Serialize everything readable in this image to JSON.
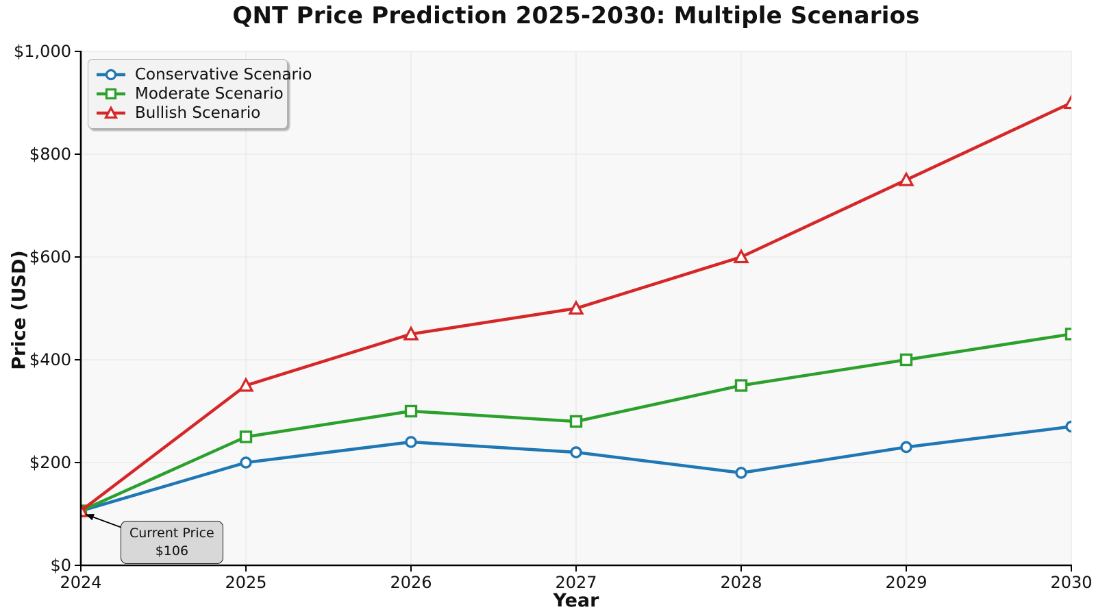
{
  "chart": {
    "title": "QNT Price Prediction 2025-2030: Multiple Scenarios",
    "xlabel": "Year",
    "ylabel": "Price (USD)"
  },
  "chart_data": {
    "type": "line",
    "title": "QNT Price Prediction 2025-2030: Multiple Scenarios",
    "xlabel": "Year",
    "ylabel": "Price (USD)",
    "x": [
      2024,
      2025,
      2026,
      2027,
      2028,
      2029,
      2030
    ],
    "x_tick_labels": [
      "2024",
      "2025",
      "2026",
      "2027",
      "2028",
      "2029",
      "2030"
    ],
    "ylim": [
      0,
      1000
    ],
    "y_ticks": [
      0,
      200,
      400,
      600,
      800,
      1000
    ],
    "y_tick_labels": [
      "$0",
      "$200",
      "$400",
      "$600",
      "$800",
      "$1,000"
    ],
    "grid": true,
    "legend_position": "upper-left",
    "series": [
      {
        "name": "Conservative Scenario",
        "color": "#1f77b4",
        "marker": "circle",
        "values": [
          106,
          200,
          240,
          220,
          180,
          230,
          270
        ]
      },
      {
        "name": "Moderate Scenario",
        "color": "#2ca02c",
        "marker": "square",
        "values": [
          106,
          250,
          300,
          280,
          350,
          400,
          450
        ]
      },
      {
        "name": "Bullish Scenario",
        "color": "#d62728",
        "marker": "triangle",
        "values": [
          106,
          350,
          450,
          500,
          600,
          750,
          900
        ]
      }
    ],
    "annotation": {
      "text_line1": "Current Price",
      "text_line2": "$106",
      "target_x": 2024,
      "target_y": 106
    }
  },
  "style": {
    "plot_bg": "#f8f8f8",
    "grid_color": "#e7e7e7",
    "spine_color": "#000000",
    "marker_fill": "#ffffff",
    "annotation_bg": "#d8d8d8",
    "legend_bg": "#f3f3f3"
  }
}
